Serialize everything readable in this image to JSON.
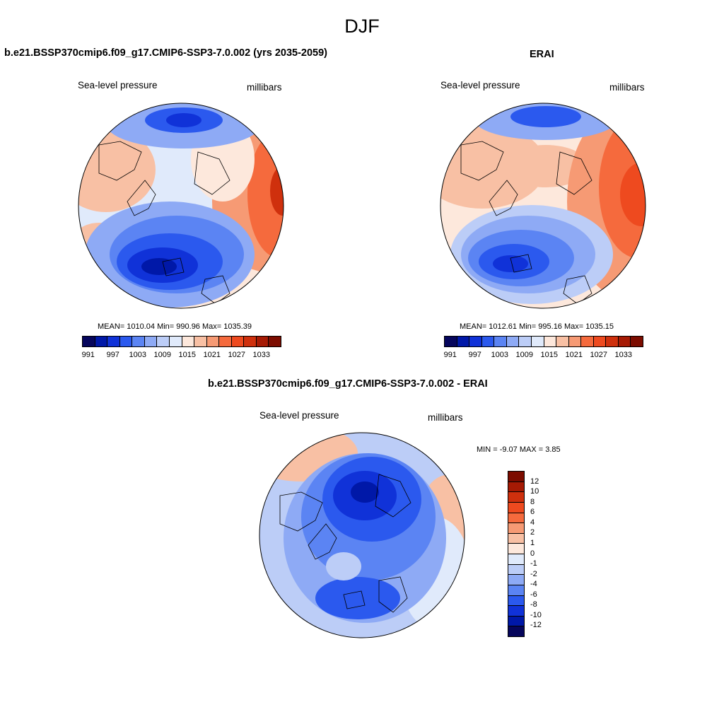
{
  "page": {
    "title": "DJF"
  },
  "panels": {
    "model": {
      "title": "b.e21.BSSP370cmip6.f09_g17.CMIP6-SSP3-7.0.002 (yrs 2035-2059)",
      "variable": "Sea-level pressure",
      "units": "millibars",
      "stats": "MEAN= 1010.04  Min= 990.96  Max= 1035.39"
    },
    "obs": {
      "title": "ERAI",
      "variable": "Sea-level pressure",
      "units": "millibars",
      "stats": "MEAN= 1012.61  Min= 995.16  Max= 1035.15"
    },
    "diff": {
      "title": "b.e21.BSSP370cmip6.f09_g17.CMIP6-SSP3-7.0.002 - ERAI",
      "variable": "Sea-level pressure",
      "units": "millibars",
      "stats": "MIN =  -9.07 MAX =   3.85"
    }
  },
  "colorbars": {
    "abs_colors": [
      "#06065c",
      "#0018a8",
      "#1032d8",
      "#2b59ee",
      "#5b84f3",
      "#8eaaf5",
      "#bccdf7",
      "#e0eafb",
      "#fde8dc",
      "#f8c0a4",
      "#f69a74",
      "#f56a3d",
      "#ee4a1f",
      "#cf300d",
      "#a61a04",
      "#7c0c00"
    ],
    "abs_ticks": [
      "991",
      "997",
      "1003",
      "1009",
      "1015",
      "1021",
      "1027",
      "1033"
    ],
    "diff_colors": [
      "#7c0c00",
      "#a61a04",
      "#cf300d",
      "#ee4a1f",
      "#f56a3d",
      "#f69a74",
      "#f8c0a4",
      "#fde8dc",
      "#e0eafb",
      "#bccdf7",
      "#8eaaf5",
      "#5b84f3",
      "#2b59ee",
      "#1032d8",
      "#0018a8",
      "#06065c"
    ],
    "diff_ticks": [
      "12",
      "10",
      "8",
      "6",
      "4",
      "2",
      "1",
      "0",
      "-1",
      "-2",
      "-4",
      "-6",
      "-8",
      "-10",
      "-12"
    ]
  }
}
